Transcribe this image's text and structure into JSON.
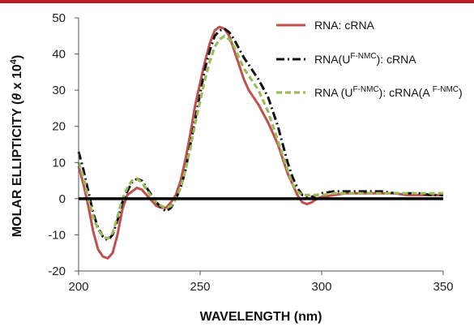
{
  "chart_data": {
    "type": "line",
    "title": "",
    "xlabel": "WAVELENGTH (nm)",
    "ylabel_main": "MOLAR ELLIPTICITY (",
    "ylabel_theta": "θ",
    "ylabel_x10": " x 10",
    "ylabel_exp": "4",
    "ylabel_close": ")",
    "xlim": [
      200,
      350
    ],
    "ylim": [
      -20,
      50
    ],
    "xticks": [
      200,
      250,
      300,
      350
    ],
    "yticks": [
      -20,
      -10,
      0,
      10,
      20,
      30,
      40,
      50
    ],
    "legend_position": "top-right",
    "legend": [
      {
        "parts": [
          {
            "t": "RNA: cRNA",
            "sup": false
          }
        ]
      },
      {
        "parts": [
          {
            "t": "RNA(U",
            "sup": false
          },
          {
            "t": "F-NMC",
            "sup": true
          },
          {
            "t": "): cRNA",
            "sup": false
          }
        ]
      },
      {
        "parts": [
          {
            "t": "RNA (U",
            "sup": false
          },
          {
            "t": "F-NMC",
            "sup": true
          },
          {
            "t": "): cRNA(A ",
            "sup": false
          },
          {
            "t": "F-NMC",
            "sup": true
          },
          {
            "t": ")",
            "sup": false
          }
        ]
      }
    ],
    "series": [
      {
        "color": "#c0504d",
        "dash": "solid",
        "x": [
          200,
          202,
          204,
          206,
          208,
          210,
          212,
          214,
          216,
          218,
          220,
          222,
          224,
          226,
          228,
          230,
          232,
          234,
          236,
          238,
          240,
          242,
          244,
          246,
          248,
          250,
          252,
          254,
          256,
          258,
          260,
          262,
          264,
          266,
          268,
          270,
          272,
          274,
          276,
          278,
          280,
          282,
          284,
          286,
          288,
          290,
          292,
          294,
          296,
          298,
          300,
          305,
          310,
          315,
          320,
          325,
          330,
          335,
          340,
          345,
          350
        ],
        "y": [
          9,
          4,
          -2,
          -9,
          -14,
          -16,
          -16.5,
          -15,
          -10,
          -3,
          1,
          2,
          3,
          2.5,
          1,
          -0.5,
          -2,
          -2.5,
          -2.5,
          -1,
          1,
          5,
          11,
          18,
          26,
          32,
          38,
          43,
          46.5,
          47.5,
          47,
          45,
          41,
          37,
          33,
          30,
          28,
          26,
          23.5,
          21,
          18,
          15,
          11,
          7,
          4,
          1,
          -1,
          -1.5,
          -1,
          0,
          0.5,
          1,
          1.5,
          1.5,
          1.5,
          1.5,
          1.5,
          1,
          1,
          1,
          1
        ]
      },
      {
        "color": "#111111",
        "dash": "dashdot",
        "x": [
          200,
          202,
          204,
          206,
          208,
          210,
          212,
          214,
          216,
          218,
          220,
          222,
          224,
          226,
          228,
          230,
          232,
          234,
          236,
          238,
          240,
          242,
          244,
          246,
          248,
          250,
          252,
          254,
          256,
          258,
          260,
          262,
          264,
          266,
          268,
          270,
          272,
          274,
          276,
          278,
          280,
          282,
          284,
          286,
          288,
          290,
          292,
          294,
          296,
          298,
          300,
          305,
          310,
          315,
          320,
          325,
          330,
          335,
          340,
          345,
          350
        ],
        "y": [
          13,
          8,
          2,
          -4,
          -8,
          -10.5,
          -11.5,
          -10,
          -6,
          -1,
          2,
          4.5,
          5.5,
          5,
          3,
          1,
          -1,
          -2.5,
          -3.5,
          -2.5,
          0,
          3,
          8,
          15,
          22,
          29,
          36,
          41,
          45,
          46.5,
          47,
          46,
          44,
          41.5,
          39,
          37,
          35,
          33,
          30.5,
          28,
          24,
          20,
          15,
          10,
          6,
          3,
          1,
          0.5,
          0.5,
          1,
          1.5,
          2,
          2,
          2,
          2,
          2,
          1.5,
          1.5,
          1.5,
          1,
          1
        ]
      },
      {
        "color": "#9bbb59",
        "dash": "dashed",
        "x": [
          200,
          202,
          204,
          206,
          208,
          210,
          212,
          214,
          216,
          218,
          220,
          222,
          224,
          226,
          228,
          230,
          232,
          234,
          236,
          238,
          240,
          242,
          244,
          246,
          248,
          250,
          252,
          254,
          256,
          258,
          260,
          262,
          264,
          266,
          268,
          270,
          272,
          274,
          276,
          278,
          280,
          282,
          284,
          286,
          288,
          290,
          292,
          294,
          296,
          298,
          300,
          305,
          310,
          315,
          320,
          325,
          330,
          335,
          340,
          345,
          350
        ],
        "y": [
          10,
          6,
          0,
          -5,
          -8.5,
          -10.5,
          -11,
          -9.5,
          -5,
          0,
          3,
          5,
          5.5,
          4.5,
          2.5,
          0.5,
          -1,
          -2,
          -2.5,
          -2,
          0,
          3,
          8,
          14,
          21,
          27,
          33,
          38,
          42,
          44,
          45,
          44,
          42,
          39,
          36,
          34,
          32,
          30,
          27,
          24,
          20,
          16,
          12,
          8,
          4,
          2,
          1,
          1,
          1,
          1,
          1,
          1.5,
          1.5,
          1.5,
          1.5,
          1.5,
          1.5,
          1.5,
          1.5,
          1.5,
          1.5
        ]
      }
    ]
  }
}
